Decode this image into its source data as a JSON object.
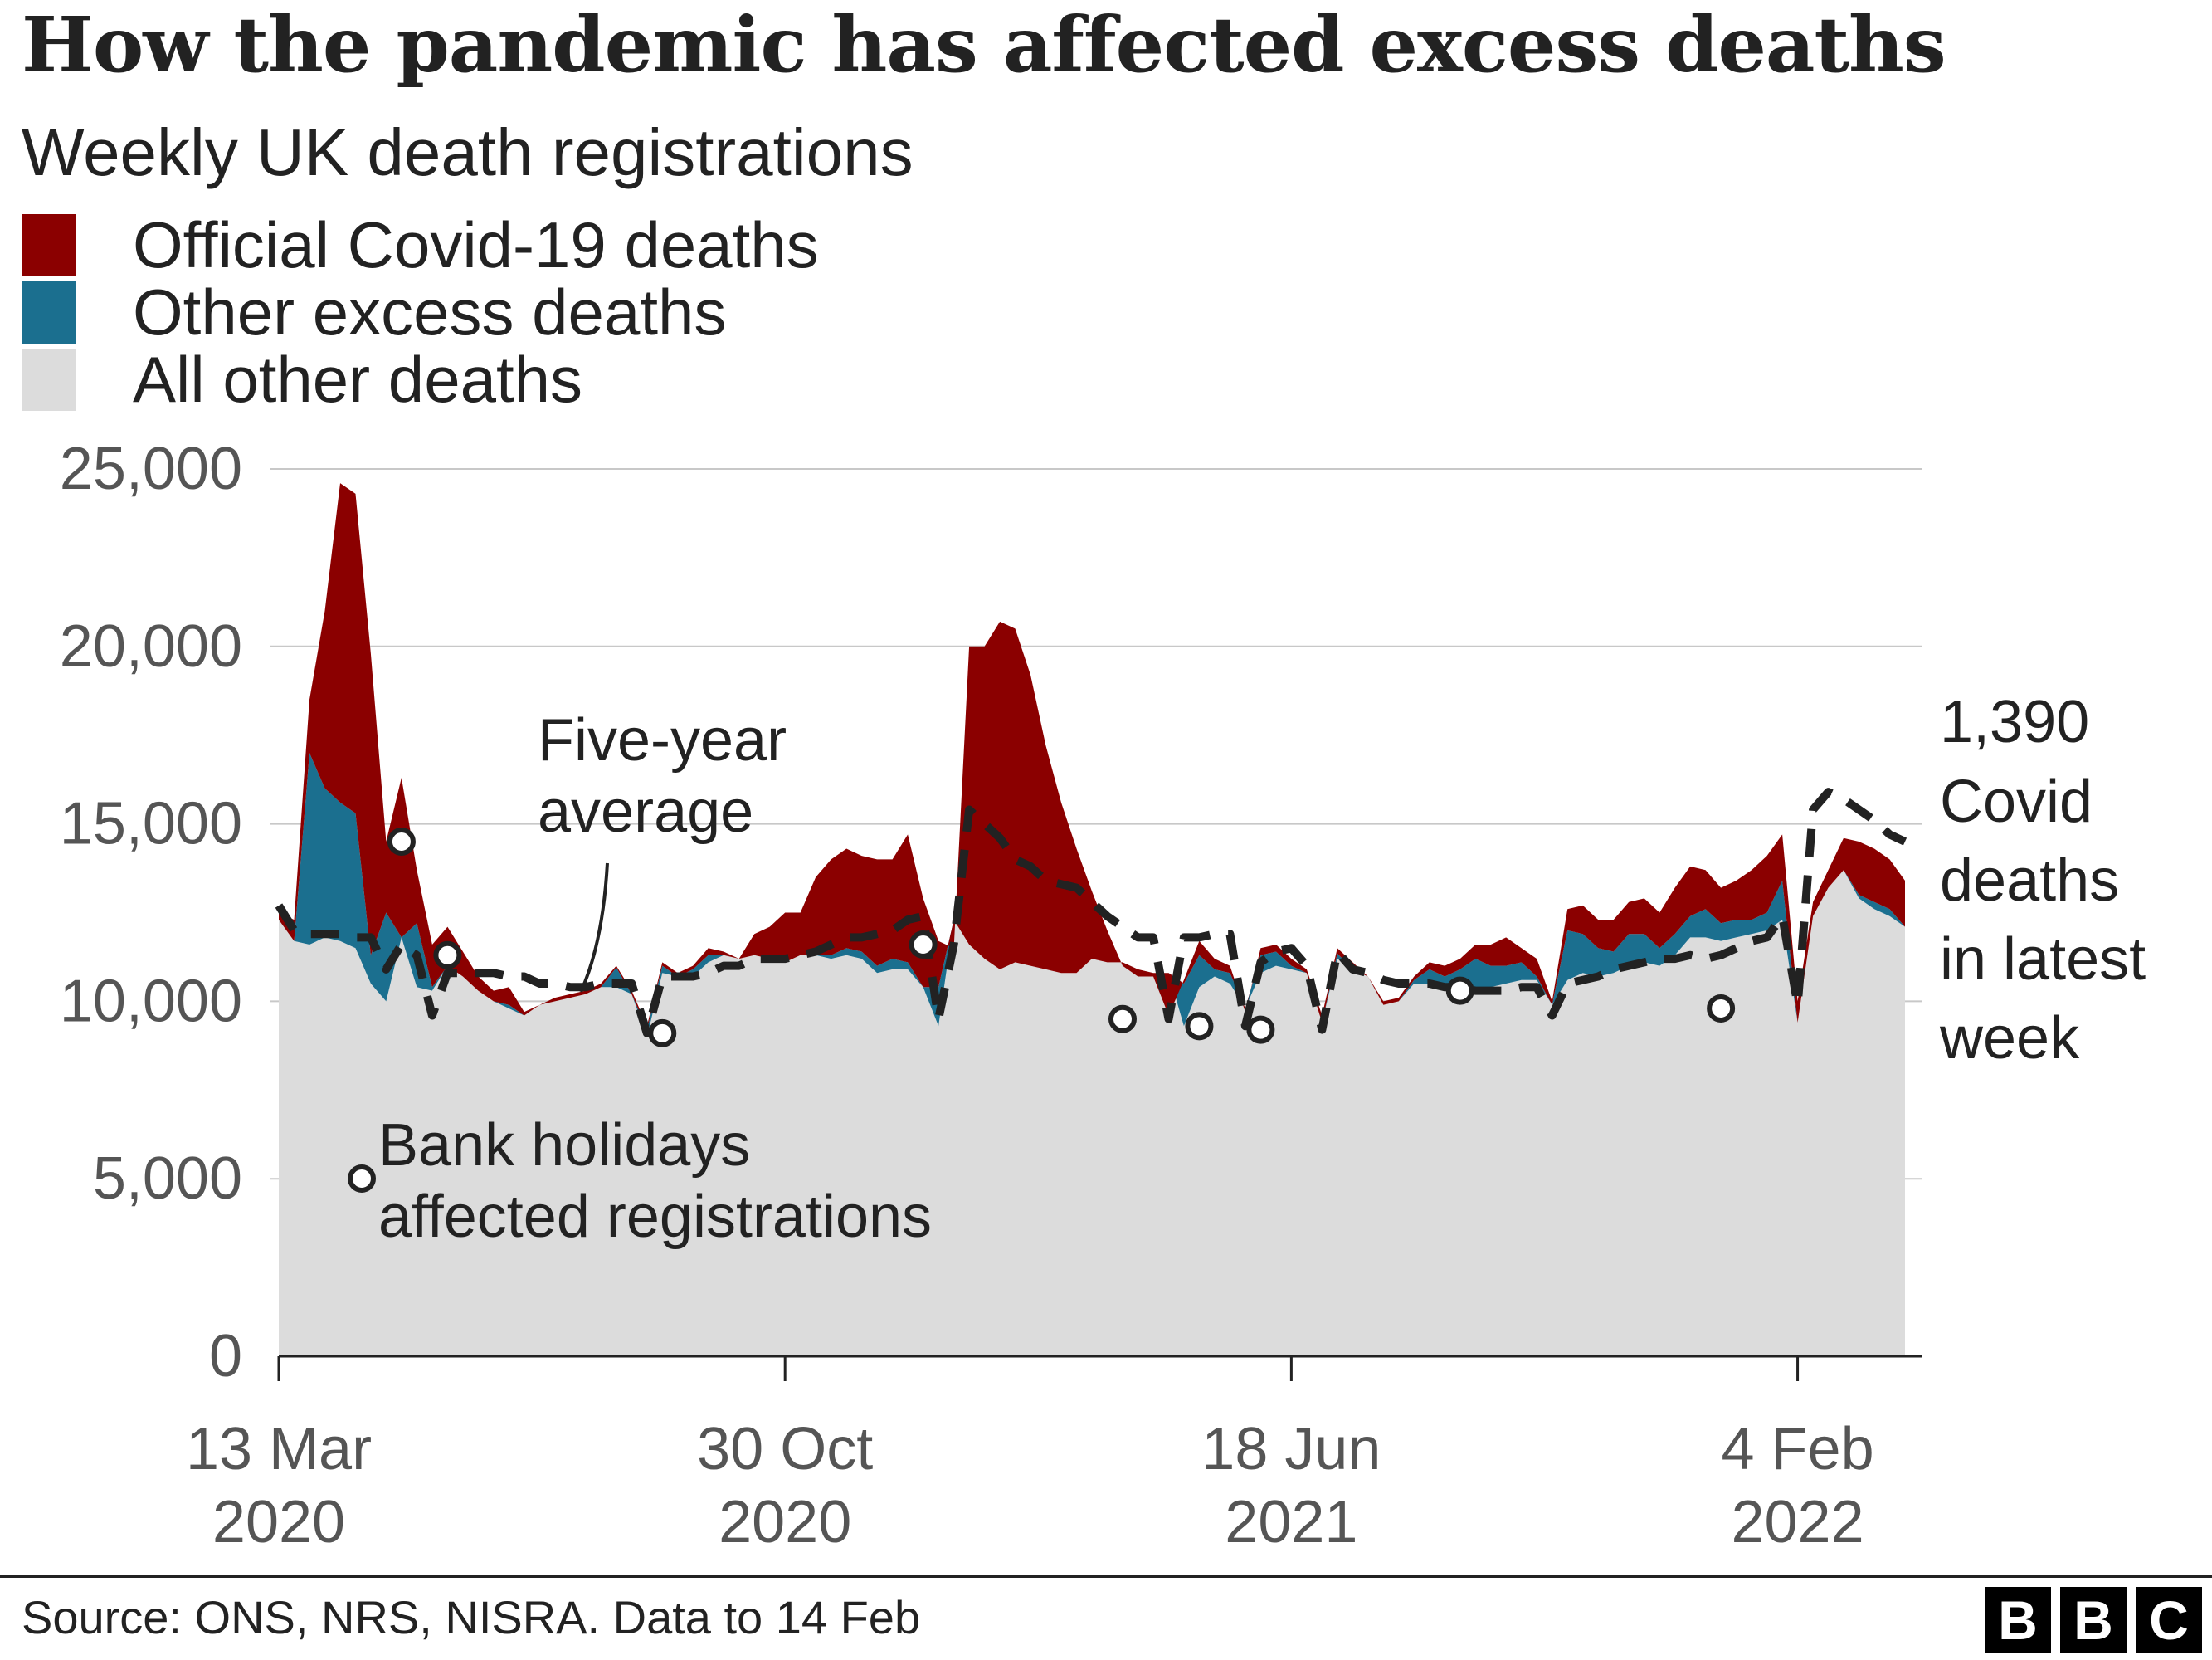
{
  "header": {
    "title": "How the pandemic has affected excess deaths",
    "subtitle": "Weekly UK death registrations"
  },
  "legend": [
    {
      "label": "Official Covid-19 deaths",
      "color": "#8b0000"
    },
    {
      "label": "Other excess deaths",
      "color": "#1b6f8f"
    },
    {
      "label": "All other deaths",
      "color": "#dcdcdc"
    }
  ],
  "footer": {
    "source": "Source: ONS, NRS, NISRA. Data to 14 Feb",
    "logo": [
      "B",
      "B",
      "C"
    ]
  },
  "chart_data": {
    "type": "area",
    "title": "How the pandemic has affected excess deaths",
    "subtitle": "Weekly UK death registrations",
    "xlabel": "",
    "ylabel": "",
    "ylim": [
      0,
      25000
    ],
    "yticks": [
      0,
      5000,
      10000,
      15000,
      20000,
      25000
    ],
    "ytick_labels": [
      "0",
      "5,000",
      "10,000",
      "15,000",
      "20,000",
      "25,000"
    ],
    "xtick_weeks": [
      0,
      33,
      66,
      99
    ],
    "xtick_labels": [
      [
        "13 Mar",
        "2020"
      ],
      [
        "30 Oct",
        "2020"
      ],
      [
        "18 Jun",
        "2021"
      ],
      [
        "4 Feb",
        "2022"
      ]
    ],
    "grid": true,
    "series_names": [
      "All other deaths",
      "Other excess deaths",
      "Official Covid-19 deaths"
    ],
    "series_colors": [
      "#dcdcdc",
      "#1b6f8f",
      "#8b0000"
    ],
    "average_line_name": "Five-year average",
    "total": [
      12500,
      12300,
      18500,
      21000,
      24600,
      24300,
      19800,
      14500,
      16300,
      13700,
      11600,
      12100,
      11400,
      10700,
      10300,
      10400,
      9700,
      9900,
      10100,
      10200,
      10300,
      10500,
      11000,
      10300,
      9300,
      11100,
      10800,
      11000,
      11500,
      11400,
      11200,
      11900,
      12100,
      12500,
      12500,
      13500,
      14000,
      14300,
      14100,
      14000,
      14000,
      14700,
      12900,
      11700,
      11500,
      20000,
      20000,
      20700,
      20500,
      19200,
      17200,
      15600,
      14300,
      13100,
      12000,
      11000,
      10700,
      10700,
      9600,
      10600,
      11700,
      11200,
      11000,
      9700,
      11500,
      11600,
      11200,
      10900,
      9600,
      11500,
      11100,
      10700,
      10000,
      10100,
      10700,
      11100,
      11000,
      11200,
      11600,
      11600,
      11800,
      11500,
      11200,
      10000,
      12600,
      12700,
      12300,
      12300,
      12800,
      12900,
      12500,
      13200,
      13800,
      13700,
      13200,
      13400,
      13700,
      14100,
      14700,
      10000,
      12800,
      13700,
      14600,
      14500,
      14300,
      14000,
      13400
    ],
    "baseline": [
      12300,
      11700,
      11600,
      11800,
      11700,
      11500,
      10500,
      10000,
      11800,
      10400,
      10300,
      11000,
      10700,
      10300,
      10000,
      9800,
      9600,
      9900,
      10000,
      10100,
      10200,
      10400,
      10400,
      10200,
      9000,
      10800,
      10700,
      10700,
      11100,
      11300,
      11200,
      11300,
      11200,
      11100,
      11300,
      11300,
      11200,
      11300,
      11200,
      10800,
      10900,
      10900,
      10400,
      9300,
      12300,
      11600,
      11200,
      10900,
      11100,
      11000,
      10900,
      10800,
      10800,
      11200,
      11100,
      11100,
      10900,
      10800,
      10800,
      9300,
      10400,
      10700,
      10500,
      9800,
      10800,
      11000,
      10900,
      10800,
      9400,
      11200,
      10900,
      10700,
      9900,
      10000,
      10500,
      10500,
      10300,
      10400,
      10400,
      10400,
      10500,
      10600,
      10600,
      9900,
      10600,
      10800,
      10700,
      10800,
      11000,
      11100,
      11000,
      11300,
      11800,
      11800,
      11700,
      11800,
      11900,
      12000,
      12300,
      9400,
      12400,
      13200,
      13700,
      12900,
      12600,
      12400,
      12100
    ],
    "covid": [
      200,
      600,
      1500,
      5000,
      9000,
      9000,
      8500,
      2000,
      4500,
      1500,
      1200,
      1300,
      900,
      700,
      600,
      500,
      300,
      300,
      200,
      150,
      150,
      100,
      50,
      100,
      100,
      100,
      100,
      100,
      200,
      200,
      400,
      700,
      1000,
      1400,
      1900,
      2200,
      2700,
      2800,
      2700,
      3000,
      2800,
      3600,
      2600,
      1300,
      2500,
      8400,
      8800,
      9800,
      9400,
      8200,
      6300,
      4800,
      3500,
      2000,
      900,
      200,
      200,
      200,
      100,
      100,
      400,
      300,
      200,
      100,
      200,
      200,
      200,
      200,
      200,
      150,
      200,
      150,
      150,
      150,
      100,
      200,
      300,
      300,
      400,
      600,
      800,
      400,
      500,
      500,
      600,
      800,
      800,
      900,
      900,
      1000,
      1000,
      1300,
      1400,
      1100,
      1000,
      1100,
      1400,
      1600,
      1300,
      700,
      400,
      700,
      1400,
      1500,
      1500,
      1400,
      1390
    ],
    "average": [
      12700,
      12000,
      11900,
      11900,
      11900,
      11800,
      11800,
      10900,
      11600,
      11300,
      9600,
      10800,
      10800,
      10800,
      10800,
      10700,
      10700,
      10500,
      10500,
      10400,
      10400,
      10500,
      10500,
      10500,
      9100,
      10700,
      10700,
      10700,
      10800,
      11000,
      11000,
      11200,
      11200,
      11200,
      11300,
      11400,
      11600,
      11800,
      11800,
      11900,
      12000,
      12300,
      12400,
      9500,
      11600,
      15400,
      15000,
      14600,
      14000,
      13800,
      13400,
      13300,
      13200,
      12800,
      12400,
      12100,
      11800,
      11800,
      9500,
      11800,
      11800,
      11900,
      11900,
      9300,
      11100,
      11400,
      11500,
      11000,
      9200,
      11400,
      10900,
      10800,
      10600,
      10500,
      10500,
      10500,
      10400,
      10400,
      10300,
      10300,
      10300,
      10400,
      10400,
      9600,
      10500,
      10600,
      10700,
      10900,
      11000,
      11100,
      11200,
      11200,
      11300,
      11200,
      11300,
      11500,
      11700,
      11800,
      12400,
      9900,
      15400,
      15900,
      15700,
      15400,
      15100,
      14700,
      14500
    ],
    "bank_holidays": [
      {
        "week": 8,
        "value": 14500
      },
      {
        "week": 11,
        "value": 11300
      },
      {
        "week": 25,
        "value": 9100
      },
      {
        "week": 42,
        "value": 11600
      },
      {
        "week": 55,
        "value": 9500
      },
      {
        "week": 60,
        "value": 9300
      },
      {
        "week": 64,
        "value": 9200
      },
      {
        "week": 77,
        "value": 10300
      },
      {
        "week": 94,
        "value": 9800
      }
    ],
    "annotations": {
      "average_lines": [
        "Five-year",
        "average"
      ],
      "bank_holiday_lines": [
        "Bank holidays",
        "affected registrations"
      ],
      "latest_lines": [
        "1,390",
        "Covid",
        "deaths",
        "in latest",
        "week"
      ]
    }
  }
}
